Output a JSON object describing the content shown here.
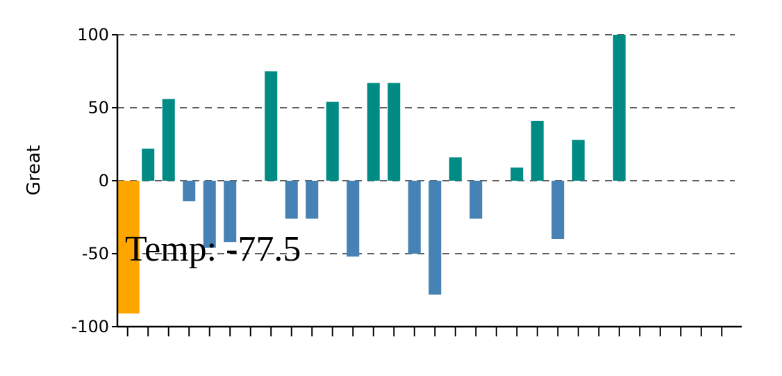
{
  "chart_data": {
    "type": "bar",
    "ylabel": "Great",
    "ylim": [
      -100,
      100
    ],
    "yticks": [
      100,
      50,
      0,
      -50,
      -100
    ],
    "grid": "horizontal dashed",
    "values": [
      -91,
      22,
      56,
      -14,
      -46,
      -42,
      null,
      75,
      -26,
      -26,
      54,
      -52,
      67,
      67,
      -50,
      -78,
      16,
      -26,
      null,
      9,
      41,
      -40,
      28,
      null,
      100,
      null,
      null,
      null,
      null,
      null
    ],
    "highlight_index": 0,
    "tooltip": "Temp: -77.5"
  },
  "colors": {
    "positive": "#008b84",
    "negative": "#4682b4",
    "highlight": "#ffa500",
    "axis": "#000000",
    "grid": "#000000"
  }
}
